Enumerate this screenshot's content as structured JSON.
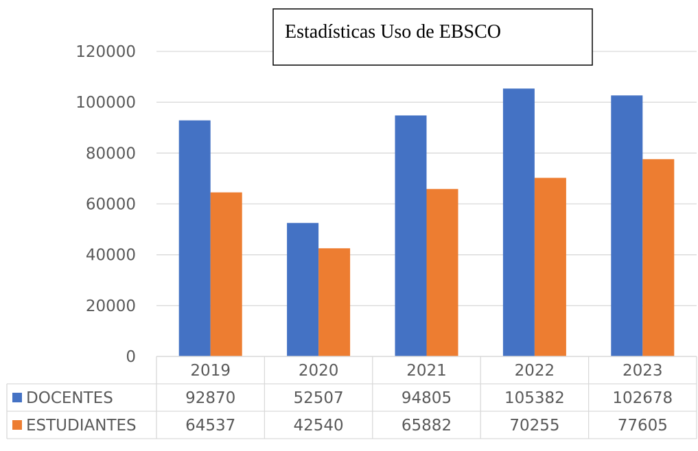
{
  "chart_data": {
    "type": "bar",
    "title": "Estadísticas Uso de EBSCO",
    "categories": [
      "2019",
      "2020",
      "2021",
      "2022",
      "2023"
    ],
    "series": [
      {
        "name": "DOCENTES",
        "color": "#4472C4",
        "values": [
          92870,
          52507,
          94805,
          105382,
          102678
        ]
      },
      {
        "name": "ESTUDIANTES",
        "color": "#ED7D31",
        "values": [
          64537,
          42540,
          65882,
          70255,
          77605
        ]
      }
    ],
    "ylim": [
      0,
      120000
    ],
    "yticks": [
      "0",
      "20000",
      "40000",
      "60000",
      "80000",
      "100000",
      "120000"
    ],
    "grid": true,
    "legend": "data-table"
  }
}
